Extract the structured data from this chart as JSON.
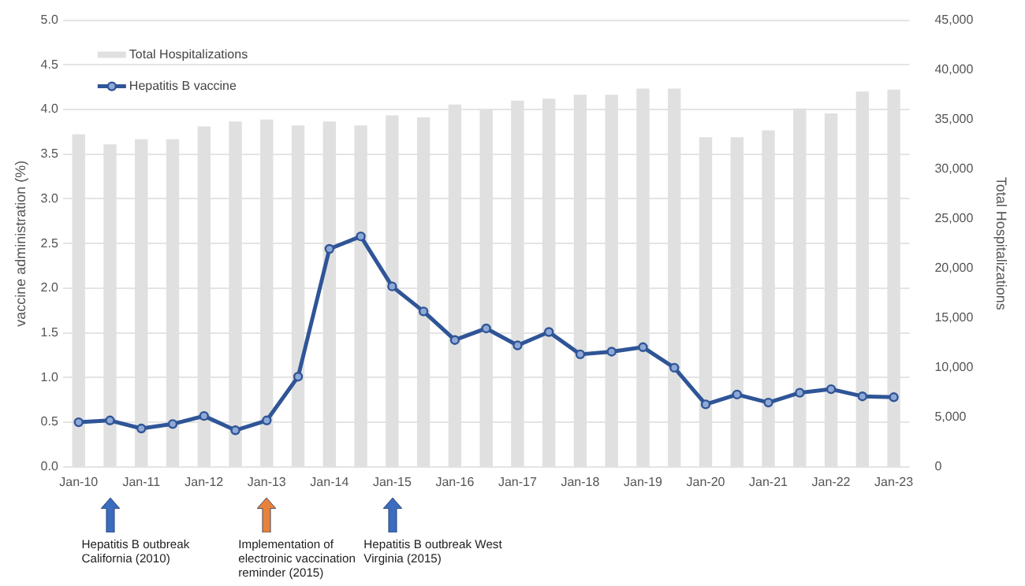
{
  "chart_data": {
    "type": "bar",
    "ylabel": "vaccine administration (%)",
    "y2label": "Total Hospitalizations",
    "categories": [
      "Jan-10",
      null,
      "Jan-11",
      null,
      "Jan-12",
      null,
      "Jan-13",
      null,
      "Jan-14",
      null,
      "Jan-15",
      null,
      "Jan-16",
      null,
      "Jan-17",
      null,
      "Jan-18",
      null,
      "Jan-19",
      null,
      "Jan-20",
      null,
      "Jan-21",
      null,
      "Jan-22",
      null,
      "Jan-23"
    ],
    "series": [
      {
        "name": "Total Hospitalizations",
        "color": "#e0e0e0",
        "axis": "y2",
        "values": [
          33500,
          32500,
          33000,
          33000,
          34300,
          34800,
          35000,
          34400,
          34800,
          34400,
          35400,
          35200,
          36500,
          36000,
          36900,
          37100,
          37500,
          37500,
          38100,
          38100,
          33200,
          33200,
          33900,
          36100,
          35600,
          37800,
          38000
        ]
      },
      {
        "type": "line",
        "name": "Hepatitis B vaccine",
        "color": "#2f5597",
        "marker": "circle",
        "values": [
          0.5,
          0.52,
          0.43,
          0.48,
          0.57,
          0.41,
          0.52,
          1.01,
          2.44,
          2.58,
          2.02,
          1.74,
          1.42,
          1.55,
          1.36,
          1.51,
          1.26,
          1.29,
          1.34,
          1.11,
          0.7,
          0.81,
          0.72,
          0.83,
          0.87,
          0.79,
          0.78
        ]
      }
    ],
    "ylim": [
      0,
      5
    ],
    "yticks": [
      {
        "value": 0,
        "label": "0.0"
      },
      {
        "value": 0.5,
        "label": "0.5"
      },
      {
        "value": 1,
        "label": "1.0"
      },
      {
        "value": 1.5,
        "label": "1.5"
      },
      {
        "value": 2,
        "label": "2.0"
      },
      {
        "value": 2.5,
        "label": "2.5"
      },
      {
        "value": 3,
        "label": "3.0"
      },
      {
        "value": 3.5,
        "label": "3.5"
      },
      {
        "value": 4,
        "label": "4.0"
      },
      {
        "value": 4.5,
        "label": "4.5"
      },
      {
        "value": 5,
        "label": "5.0"
      }
    ],
    "y2lim": [
      0,
      45000
    ],
    "y2ticks": [
      0,
      {
        "value": 5000,
        "label": "5,000"
      },
      {
        "value": 10000,
        "label": "10,000"
      },
      {
        "value": 15000,
        "label": "15,000"
      },
      {
        "value": 20000,
        "label": "20,000"
      },
      {
        "value": 25000,
        "label": "25,000"
      },
      {
        "value": 30000,
        "label": "30,000"
      },
      {
        "value": 35000,
        "label": "35,000"
      },
      {
        "value": 40000,
        "label": "40,000"
      },
      {
        "value": 45000,
        "label": "45,000"
      }
    ],
    "grid": "y",
    "legend": "top left",
    "annotations": [
      "Hepatitis B outbreak California (2010)",
      "Implementation of electroinic vaccination reminder (2015)",
      "Hepatitis B outbreak West Virginia (2015)"
    ]
  }
}
